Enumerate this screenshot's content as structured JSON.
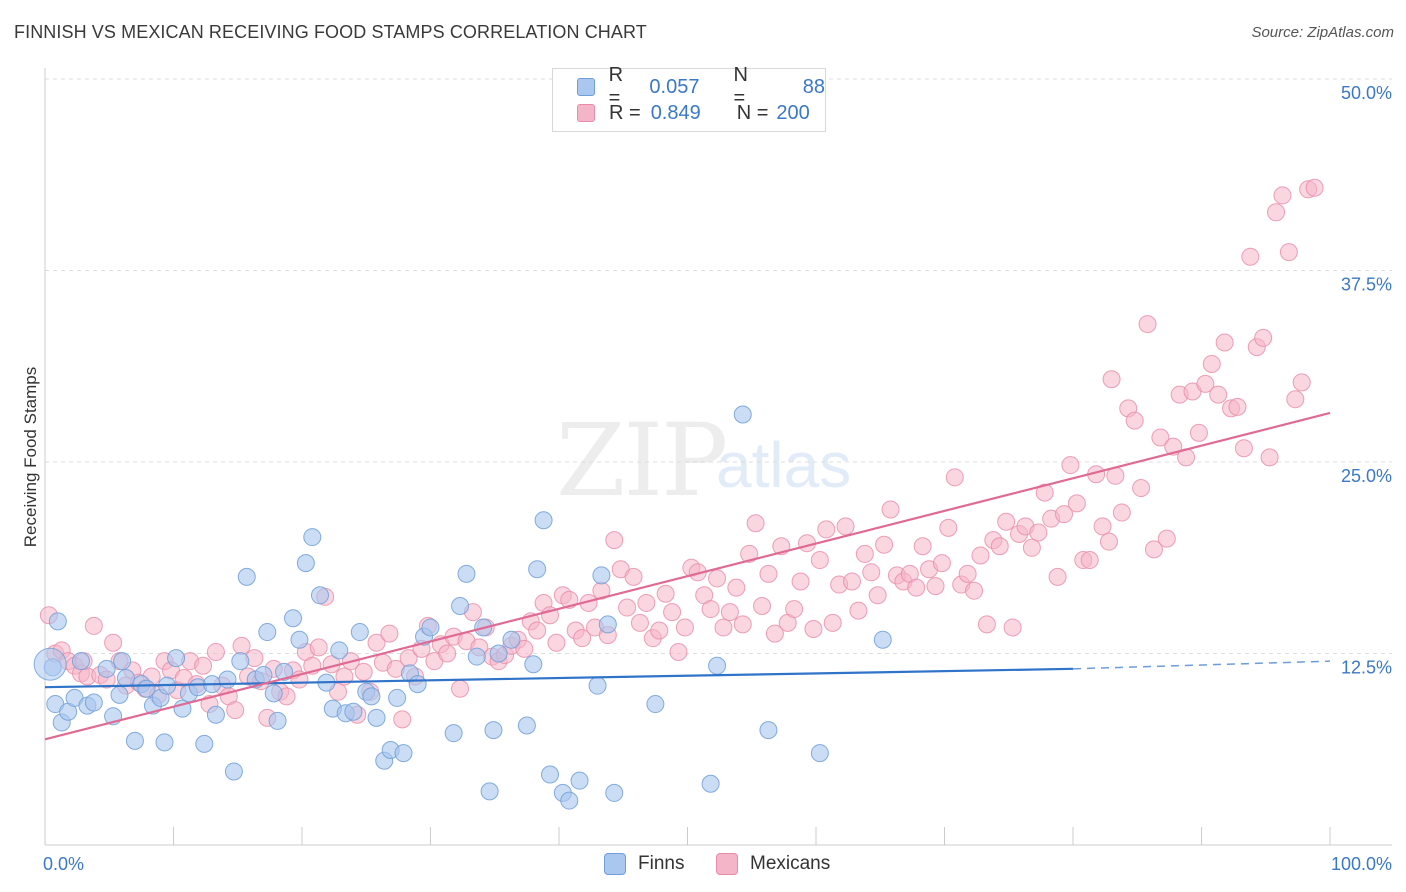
{
  "title": "FINNISH VS MEXICAN RECEIVING FOOD STAMPS CORRELATION CHART",
  "source": "Source: ZipAtlas.com",
  "watermark": {
    "zip": "ZIP",
    "atlas": "atlas"
  },
  "legend_top": {
    "finns": {
      "r_label": "R =",
      "r_value": "0.057",
      "n_label": "N =",
      "n_value": "88"
    },
    "mexicans": {
      "r_label": "R =",
      "r_value": "0.849",
      "n_label": "N =",
      "n_value": "200"
    }
  },
  "legend_bottom": {
    "finns": "Finns",
    "mexicans": "Mexicans"
  },
  "colors": {
    "finns_fill": "#a9c7ef",
    "finns_stroke": "#6f9fd8",
    "finns_line": "#2f74c8",
    "mexicans_fill": "#f5b5c8",
    "mexicans_stroke": "#e88aa8",
    "mexicans_line": "#e06a93",
    "tick_label": "#3a78c9",
    "grid": "#dddddd"
  },
  "chart_data": {
    "type": "scatter",
    "title": "FINNISH VS MEXICAN RECEIVING FOOD STAMPS CORRELATION CHART",
    "xlabel": "",
    "ylabel": "Receiving Food Stamps",
    "xlim": [
      0,
      100
    ],
    "ylim": [
      0,
      50
    ],
    "x_tick_labels": [
      "0.0%",
      "100.0%"
    ],
    "y_ticks": [
      12.5,
      25.0,
      37.5,
      50.0
    ],
    "y_tick_labels": [
      "12.5%",
      "25.0%",
      "37.5%",
      "50.0%"
    ],
    "grid": "horizontal dashed",
    "legend_position": "top-center and bottom",
    "series": [
      {
        "name": "Finns",
        "r": 0.057,
        "n": 88,
        "trend": {
          "x0": 0,
          "y0": 10.3,
          "x1": 80,
          "y1": 11.5,
          "dashed_to": 100,
          "y_at_dashed_end": 12.0
        },
        "points": [
          [
            0.6,
            11.6
          ],
          [
            0.8,
            9.2
          ],
          [
            1.3,
            8.0
          ],
          [
            1.8,
            8.7
          ],
          [
            2.3,
            9.6
          ],
          [
            2.8,
            12.0
          ],
          [
            3.3,
            9.1
          ],
          [
            3.8,
            9.3
          ],
          [
            4.8,
            11.5
          ],
          [
            5.3,
            8.4
          ],
          [
            5.8,
            9.8
          ],
          [
            6.3,
            10.9
          ],
          [
            7.0,
            6.8
          ],
          [
            7.5,
            10.5
          ],
          [
            7.9,
            10.2
          ],
          [
            8.4,
            9.1
          ],
          [
            9.0,
            9.6
          ],
          [
            9.5,
            10.4
          ],
          [
            9.3,
            6.7
          ],
          [
            10.2,
            12.2
          ],
          [
            10.7,
            8.9
          ],
          [
            11.2,
            9.9
          ],
          [
            11.9,
            10.3
          ],
          [
            12.4,
            6.6
          ],
          [
            13.0,
            10.5
          ],
          [
            13.3,
            8.5
          ],
          [
            14.2,
            10.8
          ],
          [
            14.7,
            4.8
          ],
          [
            15.2,
            12.0
          ],
          [
            15.7,
            17.5
          ],
          [
            16.4,
            10.8
          ],
          [
            17.0,
            11.1
          ],
          [
            17.3,
            13.9
          ],
          [
            17.8,
            9.9
          ],
          [
            18.1,
            8.1
          ],
          [
            18.6,
            11.3
          ],
          [
            19.3,
            14.8
          ],
          [
            19.8,
            13.4
          ],
          [
            20.3,
            18.4
          ],
          [
            20.8,
            20.1
          ],
          [
            21.4,
            16.3
          ],
          [
            21.9,
            10.6
          ],
          [
            22.4,
            8.9
          ],
          [
            22.9,
            12.7
          ],
          [
            23.4,
            8.6
          ],
          [
            24.0,
            8.7
          ],
          [
            24.5,
            13.9
          ],
          [
            25.0,
            10.0
          ],
          [
            25.4,
            9.7
          ],
          [
            25.8,
            8.3
          ],
          [
            26.4,
            5.5
          ],
          [
            26.9,
            6.2
          ],
          [
            27.4,
            9.6
          ],
          [
            27.9,
            6.0
          ],
          [
            28.4,
            11.2
          ],
          [
            29.0,
            10.5
          ],
          [
            29.5,
            13.6
          ],
          [
            30.0,
            14.2
          ],
          [
            31.8,
            7.3
          ],
          [
            32.3,
            15.6
          ],
          [
            32.8,
            17.7
          ],
          [
            33.6,
            12.3
          ],
          [
            34.1,
            14.2
          ],
          [
            34.6,
            3.5
          ],
          [
            34.9,
            7.5
          ],
          [
            35.3,
            12.5
          ],
          [
            36.3,
            13.4
          ],
          [
            37.5,
            7.8
          ],
          [
            38.0,
            11.8
          ],
          [
            38.3,
            18.0
          ],
          [
            38.8,
            21.2
          ],
          [
            39.3,
            4.6
          ],
          [
            40.3,
            3.4
          ],
          [
            40.8,
            2.9
          ],
          [
            41.6,
            4.2
          ],
          [
            43.0,
            10.4
          ],
          [
            43.3,
            17.6
          ],
          [
            43.8,
            14.4
          ],
          [
            44.3,
            3.4
          ],
          [
            47.5,
            9.2
          ],
          [
            51.8,
            4.0
          ],
          [
            52.3,
            11.7
          ],
          [
            54.3,
            28.1
          ],
          [
            56.3,
            7.5
          ],
          [
            60.3,
            6.0
          ],
          [
            65.2,
            13.4
          ],
          [
            1.0,
            14.6
          ],
          [
            6.0,
            12.0
          ]
        ]
      },
      {
        "name": "Mexicans",
        "r": 0.849,
        "n": 200,
        "trend": {
          "x0": 0,
          "y0": 6.9,
          "x1": 100,
          "y1": 28.2
        },
        "points": [
          [
            0.3,
            15.0
          ],
          [
            0.8,
            12.5
          ],
          [
            1.3,
            12.7
          ],
          [
            1.8,
            12.0
          ],
          [
            2.3,
            11.7
          ],
          [
            2.8,
            11.2
          ],
          [
            3.3,
            11.0
          ],
          [
            3.8,
            14.3
          ],
          [
            4.3,
            11.1
          ],
          [
            4.8,
            10.8
          ],
          [
            5.3,
            13.2
          ],
          [
            5.8,
            12.0
          ],
          [
            6.3,
            10.4
          ],
          [
            6.8,
            11.4
          ],
          [
            7.3,
            10.6
          ],
          [
            7.8,
            10.2
          ],
          [
            8.3,
            11.0
          ],
          [
            8.8,
            9.8
          ],
          [
            9.3,
            12.0
          ],
          [
            9.8,
            11.4
          ],
          [
            10.3,
            10.1
          ],
          [
            10.8,
            10.9
          ],
          [
            11.3,
            12.0
          ],
          [
            11.8,
            10.5
          ],
          [
            12.3,
            11.7
          ],
          [
            12.8,
            9.2
          ],
          [
            13.3,
            12.6
          ],
          [
            13.8,
            10.4
          ],
          [
            14.3,
            9.7
          ],
          [
            14.8,
            8.8
          ],
          [
            15.3,
            13.0
          ],
          [
            15.8,
            11.0
          ],
          [
            16.3,
            12.2
          ],
          [
            16.8,
            10.7
          ],
          [
            17.3,
            8.3
          ],
          [
            17.8,
            11.5
          ],
          [
            18.3,
            10.0
          ],
          [
            18.8,
            9.7
          ],
          [
            19.3,
            11.4
          ],
          [
            19.8,
            10.8
          ],
          [
            20.3,
            12.6
          ],
          [
            20.8,
            11.7
          ],
          [
            21.3,
            12.9
          ],
          [
            21.8,
            16.2
          ],
          [
            22.3,
            11.8
          ],
          [
            22.8,
            10.0
          ],
          [
            23.3,
            11.0
          ],
          [
            23.8,
            12.0
          ],
          [
            24.3,
            8.5
          ],
          [
            24.8,
            11.3
          ],
          [
            25.3,
            10.0
          ],
          [
            25.8,
            13.2
          ],
          [
            26.3,
            11.9
          ],
          [
            26.8,
            13.8
          ],
          [
            27.3,
            11.5
          ],
          [
            27.8,
            8.2
          ],
          [
            28.3,
            12.2
          ],
          [
            28.8,
            11.0
          ],
          [
            29.3,
            12.8
          ],
          [
            29.8,
            14.3
          ],
          [
            30.3,
            12.0
          ],
          [
            30.8,
            13.1
          ],
          [
            31.3,
            12.5
          ],
          [
            31.8,
            13.6
          ],
          [
            32.3,
            10.2
          ],
          [
            32.8,
            13.3
          ],
          [
            33.3,
            15.2
          ],
          [
            33.8,
            12.9
          ],
          [
            34.3,
            14.2
          ],
          [
            34.8,
            12.3
          ],
          [
            35.3,
            12.0
          ],
          [
            35.8,
            12.4
          ],
          [
            36.3,
            13.0
          ],
          [
            36.8,
            13.4
          ],
          [
            37.3,
            12.8
          ],
          [
            37.8,
            14.6
          ],
          [
            38.3,
            14.0
          ],
          [
            38.8,
            15.8
          ],
          [
            39.3,
            15.0
          ],
          [
            39.8,
            13.2
          ],
          [
            40.3,
            16.3
          ],
          [
            40.8,
            16.0
          ],
          [
            41.3,
            14.0
          ],
          [
            41.8,
            13.5
          ],
          [
            42.3,
            15.8
          ],
          [
            42.8,
            14.2
          ],
          [
            43.3,
            16.6
          ],
          [
            43.8,
            13.7
          ],
          [
            44.3,
            19.9
          ],
          [
            44.8,
            18.0
          ],
          [
            45.3,
            15.5
          ],
          [
            45.8,
            17.5
          ],
          [
            46.3,
            14.5
          ],
          [
            46.8,
            15.8
          ],
          [
            47.3,
            13.5
          ],
          [
            47.8,
            14.0
          ],
          [
            48.3,
            16.4
          ],
          [
            48.8,
            15.2
          ],
          [
            49.3,
            12.6
          ],
          [
            49.8,
            14.2
          ],
          [
            50.3,
            18.1
          ],
          [
            50.8,
            17.8
          ],
          [
            51.3,
            16.3
          ],
          [
            51.8,
            15.4
          ],
          [
            52.3,
            17.4
          ],
          [
            52.8,
            14.2
          ],
          [
            53.3,
            15.2
          ],
          [
            53.8,
            16.8
          ],
          [
            54.3,
            14.4
          ],
          [
            54.8,
            19.0
          ],
          [
            55.3,
            21.0
          ],
          [
            55.8,
            15.6
          ],
          [
            56.3,
            17.7
          ],
          [
            56.8,
            13.8
          ],
          [
            57.3,
            19.5
          ],
          [
            57.8,
            14.5
          ],
          [
            58.3,
            15.4
          ],
          [
            58.8,
            17.2
          ],
          [
            59.3,
            19.7
          ],
          [
            59.8,
            14.1
          ],
          [
            60.3,
            18.6
          ],
          [
            60.8,
            20.6
          ],
          [
            61.3,
            14.5
          ],
          [
            61.8,
            17.0
          ],
          [
            62.3,
            20.8
          ],
          [
            62.8,
            17.2
          ],
          [
            63.3,
            15.3
          ],
          [
            63.8,
            19.0
          ],
          [
            64.3,
            17.8
          ],
          [
            64.8,
            16.3
          ],
          [
            65.3,
            19.6
          ],
          [
            65.8,
            21.9
          ],
          [
            66.3,
            17.6
          ],
          [
            66.8,
            17.2
          ],
          [
            67.3,
            17.7
          ],
          [
            67.8,
            16.8
          ],
          [
            68.3,
            19.5
          ],
          [
            68.8,
            18.0
          ],
          [
            69.3,
            16.9
          ],
          [
            69.8,
            18.4
          ],
          [
            70.3,
            20.7
          ],
          [
            70.8,
            24.0
          ],
          [
            71.3,
            17.0
          ],
          [
            71.8,
            17.7
          ],
          [
            72.3,
            16.6
          ],
          [
            72.8,
            18.9
          ],
          [
            73.3,
            14.4
          ],
          [
            73.8,
            19.9
          ],
          [
            74.3,
            19.5
          ],
          [
            74.8,
            21.1
          ],
          [
            75.3,
            14.2
          ],
          [
            75.8,
            20.3
          ],
          [
            76.3,
            20.8
          ],
          [
            76.8,
            19.4
          ],
          [
            77.3,
            20.4
          ],
          [
            77.8,
            23.0
          ],
          [
            78.3,
            21.3
          ],
          [
            78.8,
            17.5
          ],
          [
            79.3,
            21.6
          ],
          [
            79.8,
            24.8
          ],
          [
            80.3,
            22.3
          ],
          [
            80.8,
            18.6
          ],
          [
            81.3,
            18.6
          ],
          [
            81.8,
            24.2
          ],
          [
            82.3,
            20.8
          ],
          [
            82.8,
            19.8
          ],
          [
            83.3,
            24.1
          ],
          [
            83.8,
            21.7
          ],
          [
            84.3,
            28.5
          ],
          [
            84.8,
            27.7
          ],
          [
            85.3,
            23.3
          ],
          [
            85.8,
            34.0
          ],
          [
            86.3,
            19.3
          ],
          [
            86.8,
            26.6
          ],
          [
            87.3,
            20.0
          ],
          [
            87.8,
            26.0
          ],
          [
            88.3,
            29.4
          ],
          [
            88.8,
            25.3
          ],
          [
            89.3,
            29.6
          ],
          [
            89.8,
            26.9
          ],
          [
            90.3,
            30.1
          ],
          [
            90.8,
            31.4
          ],
          [
            91.3,
            29.4
          ],
          [
            91.8,
            32.8
          ],
          [
            92.3,
            28.5
          ],
          [
            92.8,
            28.6
          ],
          [
            93.3,
            25.9
          ],
          [
            93.8,
            38.4
          ],
          [
            94.3,
            32.5
          ],
          [
            94.8,
            33.1
          ],
          [
            95.3,
            25.3
          ],
          [
            95.8,
            41.3
          ],
          [
            96.3,
            42.4
          ],
          [
            96.8,
            38.7
          ],
          [
            97.3,
            29.1
          ],
          [
            97.8,
            30.2
          ],
          [
            98.3,
            42.8
          ],
          [
            98.8,
            42.9
          ],
          [
            83.0,
            30.4
          ],
          [
            3.0,
            12.0
          ]
        ]
      }
    ]
  }
}
